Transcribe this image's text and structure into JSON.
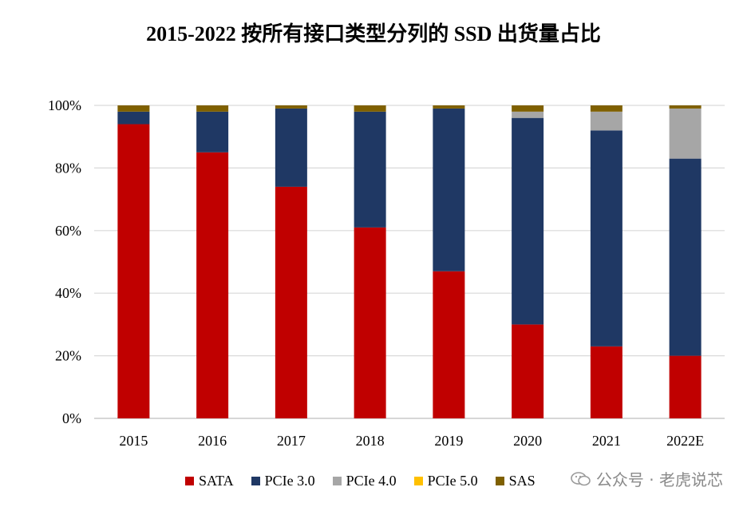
{
  "chart_data": {
    "type": "bar",
    "stacked": true,
    "percent_stacked": true,
    "title": "2015-2022 按所有接口类型分列的 SSD 出货量占比",
    "categories": [
      "2015",
      "2016",
      "2017",
      "2018",
      "2019",
      "2020",
      "2021",
      "2022E"
    ],
    "series": [
      {
        "name": "SATA",
        "color": "#c00000",
        "values": [
          94,
          85,
          74,
          61,
          47,
          30,
          23,
          20
        ]
      },
      {
        "name": "PCIe 3.0",
        "color": "#1f3864",
        "values": [
          4,
          13,
          25,
          37,
          52,
          66,
          69,
          63
        ]
      },
      {
        "name": "PCIe 4.0",
        "color": "#a6a6a6",
        "values": [
          0,
          0,
          0,
          0,
          0,
          2,
          6,
          16
        ]
      },
      {
        "name": "PCIe 5.0",
        "color": "#ffc000",
        "values": [
          0,
          0,
          0,
          0,
          0,
          0,
          0,
          0
        ]
      },
      {
        "name": "SAS",
        "color": "#7f6000",
        "values": [
          2,
          2,
          1,
          2,
          1,
          2,
          2,
          1
        ]
      }
    ],
    "yticks": [
      "0%",
      "20%",
      "40%",
      "60%",
      "80%",
      "100%"
    ],
    "ylim": [
      0,
      100
    ],
    "grid": true,
    "legend_position": "bottom"
  },
  "watermark": "公众号 · 老虎说芯"
}
